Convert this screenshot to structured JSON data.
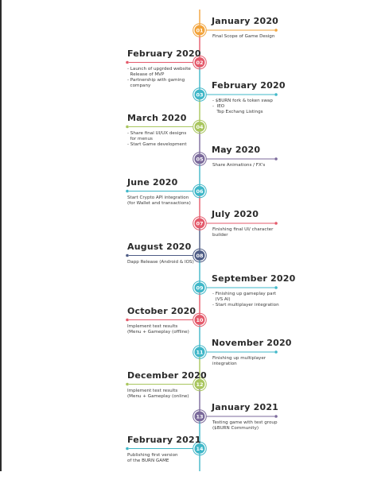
{
  "colors": {
    "spine": "#2a3b4c",
    "orange": "#f2a33a",
    "red": "#e45a6b",
    "teal": "#3fb7c8",
    "green": "#a9c65e",
    "purple": "#7b6a9b",
    "navy": "#4f5d86"
  },
  "milestones": [
    {
      "num": "01",
      "title": "January 2020",
      "side": "right",
      "color": "orange",
      "desc": "Final Scope of Game Design"
    },
    {
      "num": "02",
      "title": "February 2020",
      "side": "left",
      "color": "red",
      "desc": "- Launch of upgrded website\n  Release of MVP\n- Partnership with gaming\n  company"
    },
    {
      "num": "03",
      "title": "February 2020",
      "side": "right",
      "color": "teal",
      "desc": "- $BURN fork & token swap\n-  IEO\n   Top Exchang Listings"
    },
    {
      "num": "04",
      "title": "March 2020",
      "side": "left",
      "color": "green",
      "desc": "- Share final UI/UX designs\n  for menus\n- Start Game development"
    },
    {
      "num": "05",
      "title": "May 2020",
      "side": "right",
      "color": "purple",
      "desc": "Share Animations / FX's"
    },
    {
      "num": "06",
      "title": "June 2020",
      "side": "left",
      "color": "teal",
      "desc": "Start Crypto API integration\n(for Wallet and transactions)"
    },
    {
      "num": "07",
      "title": "July 2020",
      "side": "right",
      "color": "red",
      "desc": "Finishing final UI/ character\nbuilder"
    },
    {
      "num": "08",
      "title": "August 2020",
      "side": "left",
      "color": "navy",
      "desc": "Dapp Release (Android & IOS)"
    },
    {
      "num": "09",
      "title": "September 2020",
      "side": "right",
      "color": "teal",
      "desc": "- Finishing up gameplay part\n  (VS AI)\n- Start multiplayer integration"
    },
    {
      "num": "10",
      "title": "October 2020",
      "side": "left",
      "color": "red",
      "desc": "Implement test results\n(Menu + Gameplay (offline)"
    },
    {
      "num": "11",
      "title": "November 2020",
      "side": "right",
      "color": "teal",
      "desc": "Finishing up multiplayer\nintegration"
    },
    {
      "num": "12",
      "title": "December 2020",
      "side": "left",
      "color": "green",
      "desc": "Implement test results\n(Menu + Gameplay (online)"
    },
    {
      "num": "13",
      "title": "January 2021",
      "side": "right",
      "color": "purple",
      "desc": "Testing game with test group\n($BURN Community)"
    },
    {
      "num": "14",
      "title": "February 2021",
      "side": "left",
      "color": "teal",
      "desc": "Publishing first version\nof the BURN GAME"
    }
  ]
}
